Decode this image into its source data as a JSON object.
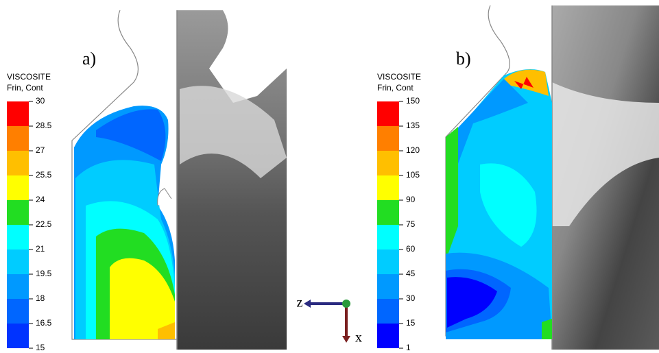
{
  "panels": [
    {
      "label": "a)",
      "legend": {
        "title": "VISCOSITE",
        "subtitle": "Frin, Cont",
        "ticks": [
          30,
          28.5,
          27,
          25.5,
          24,
          22.5,
          21,
          19.5,
          18,
          16.5,
          15
        ],
        "colors": [
          "#ff0000",
          "#ff7f00",
          "#ffbf00",
          "#ffff00",
          "#22dd22",
          "#00ffff",
          "#00ccff",
          "#0099ff",
          "#0066ff",
          "#0033ff"
        ]
      }
    },
    {
      "label": "b)",
      "legend": {
        "title": "VISCOSITE",
        "subtitle": "Frin, Cont",
        "ticks": [
          150,
          135,
          120,
          105,
          90,
          75,
          60,
          45,
          30,
          15,
          1
        ],
        "colors": [
          "#ff0000",
          "#ff7f00",
          "#ffbf00",
          "#ffff00",
          "#22dd22",
          "#00ffff",
          "#00ccff",
          "#0099ff",
          "#0066ff",
          "#0000ff"
        ]
      }
    }
  ],
  "axes": {
    "horizontal": "z",
    "vertical": "x"
  }
}
